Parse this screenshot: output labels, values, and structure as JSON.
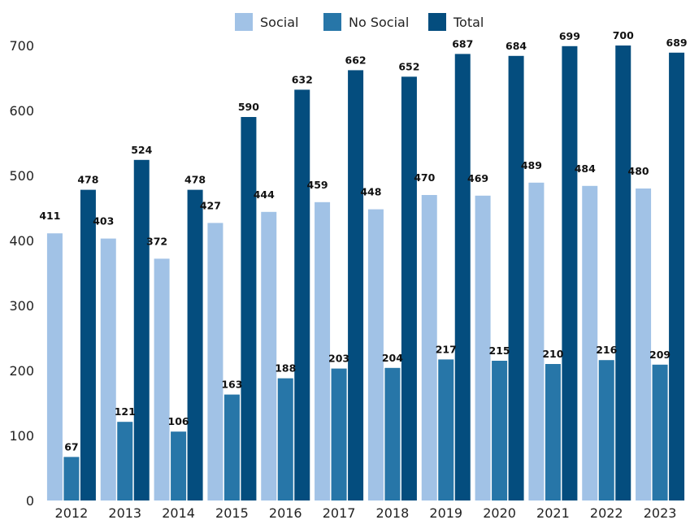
{
  "chart_data": {
    "type": "bar",
    "title": "",
    "xlabel": "",
    "ylabel": "",
    "ylim": [
      0,
      700
    ],
    "yticks": [
      0,
      100,
      200,
      300,
      400,
      500,
      600,
      700
    ],
    "grid": false,
    "legend_position": "top",
    "categories": [
      "2012",
      "2013",
      "2014",
      "2015",
      "2016",
      "2017",
      "2018",
      "2019",
      "2020",
      "2021",
      "2022",
      "2023"
    ],
    "series": [
      {
        "name": "Social",
        "color": "#a1c2e6",
        "values": [
          411,
          403,
          372,
          427,
          444,
          459,
          448,
          470,
          469,
          489,
          484,
          480
        ]
      },
      {
        "name": "No Social",
        "color": "#2776a8",
        "values": [
          67,
          121,
          106,
          163,
          188,
          203,
          204,
          217,
          215,
          210,
          216,
          209
        ]
      },
      {
        "name": "Total",
        "color": "#044d7e",
        "values": [
          478,
          524,
          478,
          590,
          632,
          662,
          652,
          687,
          684,
          699,
          700,
          689
        ]
      }
    ],
    "data_labels": {
      "Social": [
        "411",
        "403",
        "372",
        "427",
        "444",
        "459",
        "448",
        "470",
        "469",
        "489",
        "484",
        "480"
      ],
      "No Social": [
        "67",
        "121",
        "106",
        "163",
        "188",
        "203",
        "204",
        "217",
        "215",
        "210",
        "216",
        "209"
      ],
      "Total": [
        "478",
        "524",
        "478",
        "590",
        "632",
        "662",
        "652",
        "687",
        "684",
        "699",
        "700",
        "689"
      ]
    }
  }
}
